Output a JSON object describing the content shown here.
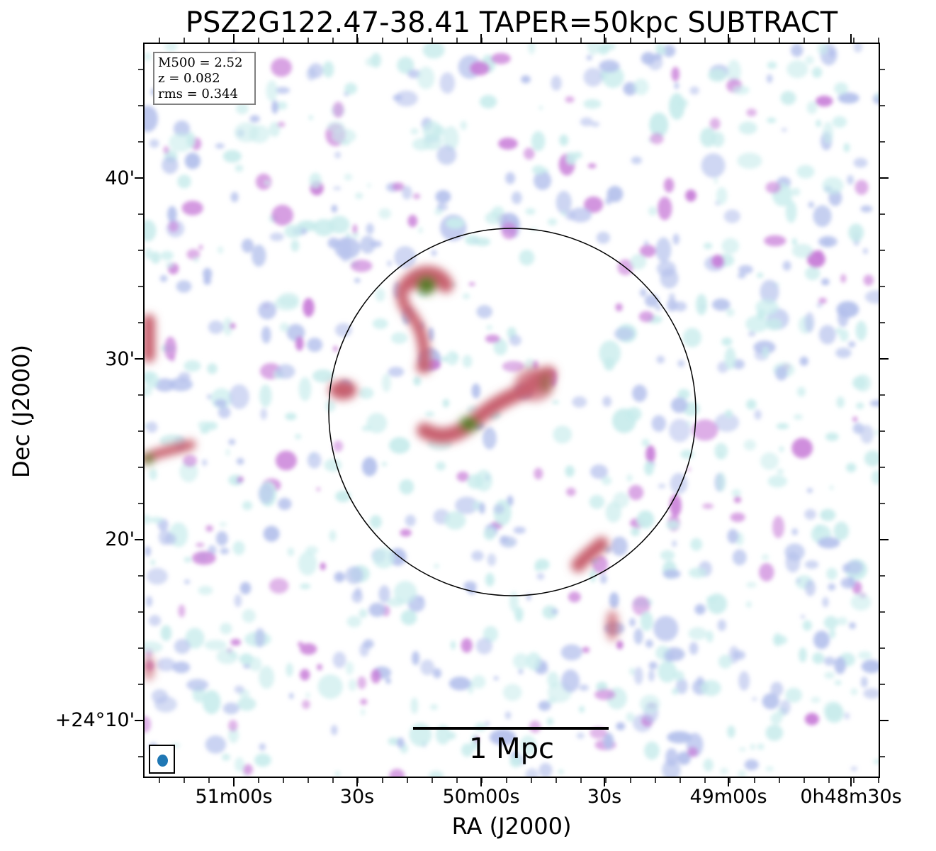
{
  "title": "PSZ2G122.47-38.41 TAPER=50kpc SUBTRACT",
  "axes": {
    "x_label": "RA (J2000)",
    "y_label": "Dec (J2000)",
    "x_ticks": [
      "51m00s",
      "30s",
      "50m00s",
      "30s",
      "49m00s",
      "0h48m30s"
    ],
    "y_ticks": [
      "40'",
      "30'",
      "20'",
      "+24°10'"
    ]
  },
  "info_box": {
    "m500": "M500 = 2.52",
    "z": "z = 0.082",
    "rms": "rms = 0.344"
  },
  "scalebar": {
    "label": "1 Mpc"
  },
  "colors": {
    "contour_low": "#c8ecec",
    "contour_mid": "#b4c0ec",
    "contour_high": "#c87dd8",
    "contour_strong": "#c8606e",
    "contour_peak": "#5a7a2a",
    "beam": "#1f77b4",
    "circle": "#000000"
  },
  "icons": {
    "beam": "beam-ellipse-icon"
  }
}
